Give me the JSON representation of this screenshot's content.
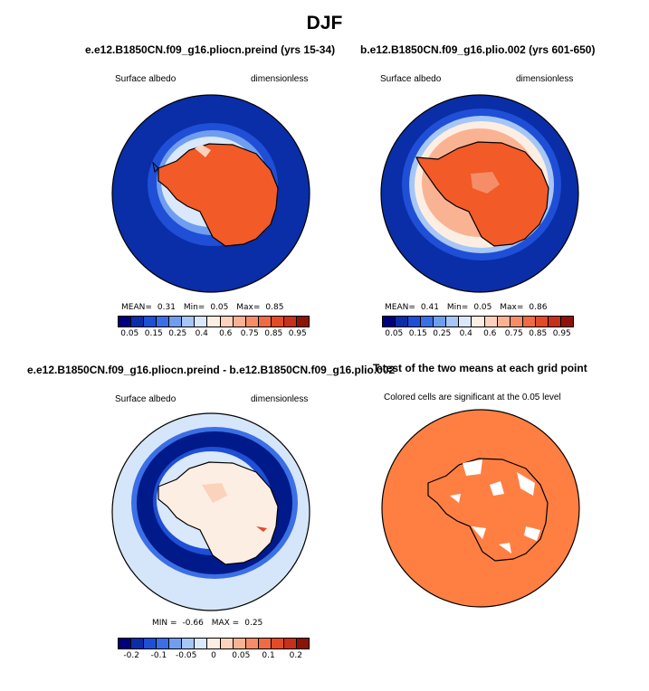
{
  "title": "DJF",
  "colors": {
    "ocean_dark": "#0a2ea8",
    "ice_orange": "#f25a28",
    "sig_orange": "#ff7f43",
    "diff_light": "#d6e6fa",
    "diff_dark": "#001a8a"
  },
  "panels": [
    {
      "title": "e.e12.B1850CN.f09_g16.pliocn.preind (yrs 15-34)",
      "variable": "Surface albedo",
      "units": "dimensionless",
      "stats": {
        "mean_label": "MEAN=",
        "mean": "0.31",
        "min_label": "Min=",
        "min": "0.05",
        "max_label": "Max=",
        "max": "0.85"
      }
    },
    {
      "title": "b.e12.B1850CN.f09_g16.plio.002 (yrs 601-650)",
      "variable": "Surface albedo",
      "units": "dimensionless",
      "stats": {
        "mean_label": "MEAN=",
        "mean": "0.41",
        "min_label": "Min=",
        "min": "0.05",
        "max_label": "Max=",
        "max": "0.86"
      }
    },
    {
      "title": "e.e12.B1850CN.f09_g16.pliocn.preind - b.e12.B1850CN.f09_g16.plio.002",
      "variable": "Surface albedo",
      "units": "dimensionless",
      "stats": {
        "min_label": "MIN =",
        "min": "-0.66",
        "max_label": "MAX =",
        "max": "0.25"
      }
    },
    {
      "title": "T-test of the two means at each grid point",
      "note": "Colored cells are significant at the 0.05 level"
    }
  ],
  "colorbar_main": {
    "colors": [
      "#00007f",
      "#0a2ea8",
      "#1f4fd6",
      "#3b6fe6",
      "#6f9ef0",
      "#a6c6f5",
      "#d9e8fa",
      "#fdeee4",
      "#fcd2bd",
      "#f9b393",
      "#f58e68",
      "#f06a45",
      "#e34a28",
      "#c7301a",
      "#8e1208"
    ],
    "ticks": [
      "0.05",
      "0.15",
      "0.25",
      "0.4",
      "0.6",
      "0.75",
      "0.85",
      "0.95"
    ]
  },
  "colorbar_diff": {
    "colors": [
      "#00007f",
      "#0a2ea8",
      "#1f4fd6",
      "#3b6fe6",
      "#6f9ef0",
      "#a6c6f5",
      "#d9e8fa",
      "#fdeee4",
      "#fcd2bd",
      "#f9b393",
      "#f58e68",
      "#f06a45",
      "#e34a28",
      "#c7301a",
      "#8e1208"
    ],
    "ticks": [
      "-0.2",
      "-0.1",
      "-0.05",
      "0",
      "0.05",
      "0.1",
      "0.2"
    ]
  }
}
